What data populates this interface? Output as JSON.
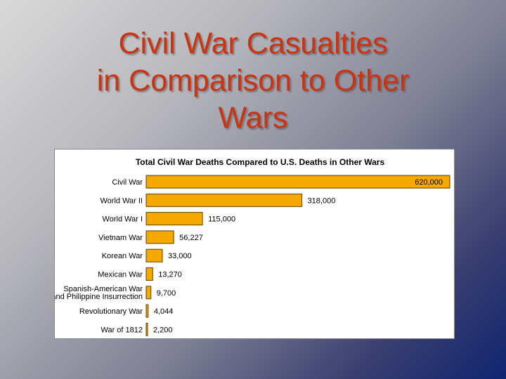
{
  "slide": {
    "title_lines": [
      "Civil War Casualties",
      "in Comparison to Other",
      "Wars"
    ]
  },
  "colors": {
    "title": "#cc3311",
    "bar_fill": "#f5a800",
    "bar_stroke": "#5a4100"
  },
  "chart_data": {
    "type": "bar",
    "orientation": "horizontal",
    "title": "Total Civil War Deaths Compared to U.S. Deaths in Other Wars",
    "xlabel": "",
    "ylabel": "",
    "grid": false,
    "legend": "none",
    "xlim": [
      0,
      620000
    ],
    "categories": [
      "Civil War",
      "World War II",
      "World War I",
      "Vietnam War",
      "Korean War",
      "Mexican War",
      "Spanish-American War\nand Philippine Insurrection",
      "Revolutionary War",
      "War of 1812"
    ],
    "values": [
      620000,
      318000,
      115000,
      56227,
      33000,
      13270,
      9700,
      4044,
      2200
    ],
    "value_labels": [
      "620,000",
      "318,000",
      "115,000",
      "56,227",
      "33,000",
      "13,270",
      "9,700",
      "4,044",
      "2,200"
    ]
  }
}
